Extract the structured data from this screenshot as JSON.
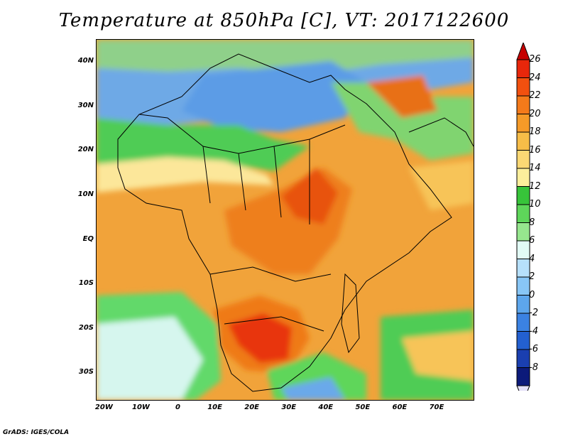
{
  "title": "Temperature at 850hPa [C], VT: 2017122600",
  "credit": "GrADS: IGES/COLA",
  "map": {
    "lon_range": [
      -22,
      80
    ],
    "lat_range": [
      -36,
      45
    ],
    "lat_ticks": [
      "40N",
      "30N",
      "20N",
      "10N",
      "EQ",
      "10S",
      "20S",
      "30S"
    ],
    "lat_values": [
      40,
      30,
      20,
      10,
      0,
      -10,
      -20,
      -30
    ],
    "lon_ticks": [
      "20W",
      "10W",
      "0",
      "10E",
      "20E",
      "30E",
      "40E",
      "50E",
      "60E",
      "70E"
    ],
    "lon_values": [
      -20,
      -10,
      0,
      10,
      20,
      30,
      40,
      50,
      60,
      70
    ]
  },
  "colorbar": {
    "labels": [
      "26",
      "24",
      "22",
      "20",
      "18",
      "16",
      "14",
      "12",
      "10",
      "8",
      "6",
      "4",
      "2",
      "0",
      "-2",
      "-4",
      "-6",
      "-8"
    ],
    "colors": [
      "#e8270b",
      "#f2500f",
      "#f47a1a",
      "#f59a28",
      "#f7bd48",
      "#fbd874",
      "#fcef9c",
      "#37c43a",
      "#5ed65a",
      "#96e68e",
      "#e2fbf6",
      "#b6e0fb",
      "#88c6f6",
      "#5da6ec",
      "#3b82e2",
      "#2360d0",
      "#1a3fb0",
      "#0c1a7a"
    ],
    "top_arrow_color": "#c60000",
    "bottom_arrow_color": "#e4e0f8"
  }
}
